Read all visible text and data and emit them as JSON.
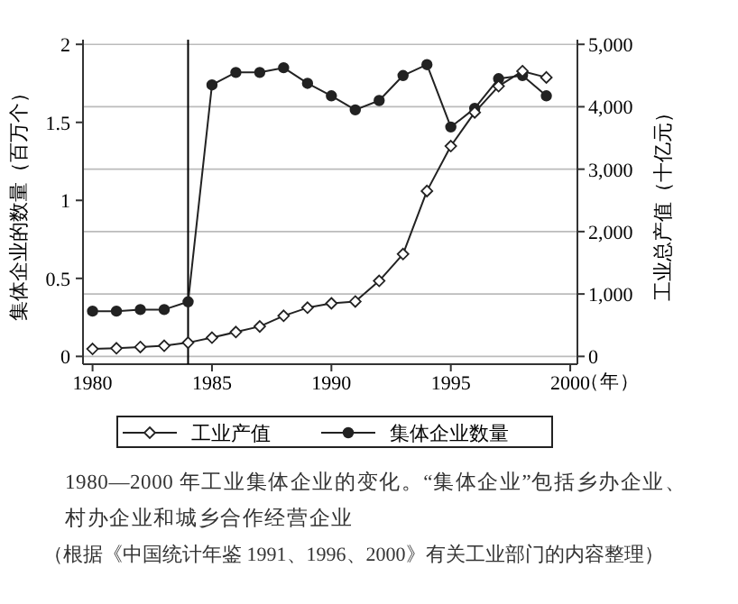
{
  "chart_data": {
    "type": "line",
    "xlabel": "（年）",
    "ylabel": "集体企业的数量（百万个）",
    "y2label": "工业总产值（十亿元）",
    "x": [
      1980,
      1981,
      1982,
      1983,
      1984,
      1985,
      1986,
      1987,
      1988,
      1989,
      1990,
      1991,
      1992,
      1993,
      1994,
      1995,
      1996,
      1997,
      1998,
      1999
    ],
    "series": [
      {
        "name": "工业产值",
        "color": "#222222",
        "marker": "diamond",
        "axis": "y2",
        "values": [
          120,
          130,
          150,
          170,
          220,
          300,
          390,
          480,
          650,
          780,
          850,
          880,
          1210,
          1640,
          2650,
          3370,
          3910,
          4330,
          4570,
          4470
        ]
      },
      {
        "name": "集体企业数量",
        "color": "#222222",
        "marker": "circle",
        "values": [
          0.29,
          0.29,
          0.3,
          0.3,
          0.35,
          1.74,
          1.82,
          1.82,
          1.85,
          1.75,
          1.67,
          1.58,
          1.64,
          1.8,
          1.87,
          1.47,
          1.59,
          1.78,
          1.8,
          1.67
        ]
      }
    ],
    "xlim": [
      1979.6,
      2000.3
    ],
    "xticks": [
      1980,
      1985,
      1990,
      1995,
      2000
    ],
    "ylim": [
      -0.05,
      2.03
    ],
    "yticks": [
      0,
      0.5,
      1,
      1.5,
      2
    ],
    "y2lim": [
      -125,
      5075
    ],
    "y2ticks": [
      0,
      {
        "value": 1000,
        "label": "1,000"
      },
      {
        "value": 2000,
        "label": "2,000"
      },
      {
        "value": 3000,
        "label": "3,000"
      },
      {
        "value": 4000,
        "label": "4,000"
      },
      {
        "value": 5000,
        "label": "5,000"
      }
    ],
    "ref_lines": [
      {
        "axis": "x",
        "value": 1984,
        "color": "#000000"
      }
    ],
    "grid": true,
    "legend": "bottom",
    "line_style": "solid",
    "annotations": [
      "1980—2000 年工业集体企业的变化。“集体企业”包括乡办企业、村办企业和城乡合作经营企业",
      "（根据《中国统计年鉴 1991、1996、2000》有关工业部门的内容整理）"
    ]
  }
}
